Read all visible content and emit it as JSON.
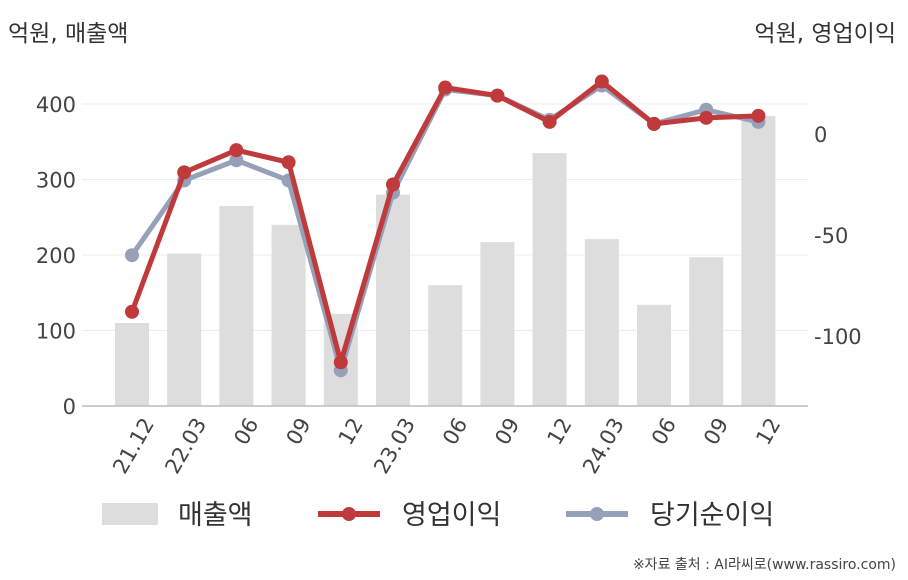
{
  "left_unit": "억원, 매출액",
  "right_unit": "억원, 영업이익",
  "source": "※자료 출처 : AI라씨로(www.rassiro.com)",
  "chart_data": {
    "type": "bar+line",
    "categories": [
      "21.12",
      "22.03",
      "06",
      "09",
      "12",
      "23.03",
      "06",
      "09",
      "12",
      "24.03",
      "06",
      "09",
      "12"
    ],
    "left_axis": {
      "ticks": [
        "0",
        "100",
        "200",
        "300",
        "400"
      ],
      "ylim": [
        0,
        400
      ]
    },
    "right_axis": {
      "ticks": [
        "0",
        "-50",
        "-100"
      ],
      "values": [
        0,
        -50,
        -100
      ]
    },
    "series": [
      {
        "name": "매출액",
        "type": "bar",
        "axis": "left",
        "color": "#dddddd",
        "values": [
          110,
          202,
          265,
          240,
          122,
          280,
          160,
          217,
          335,
          221,
          134,
          197,
          384
        ]
      },
      {
        "name": "영업이익",
        "type": "line",
        "axis": "right",
        "color": "#c0393b",
        "values": [
          -88,
          -19,
          -8,
          -14,
          -113,
          -25,
          23,
          19,
          6,
          26,
          5,
          8,
          9
        ]
      },
      {
        "name": "당기순이익",
        "type": "line",
        "axis": "right",
        "color": "#96a0b9",
        "values": [
          -60,
          -23,
          -13,
          -23,
          -117,
          -29,
          22,
          19,
          7,
          24,
          5,
          12,
          6
        ]
      }
    ],
    "grid": true,
    "legend_position": "bottom"
  }
}
